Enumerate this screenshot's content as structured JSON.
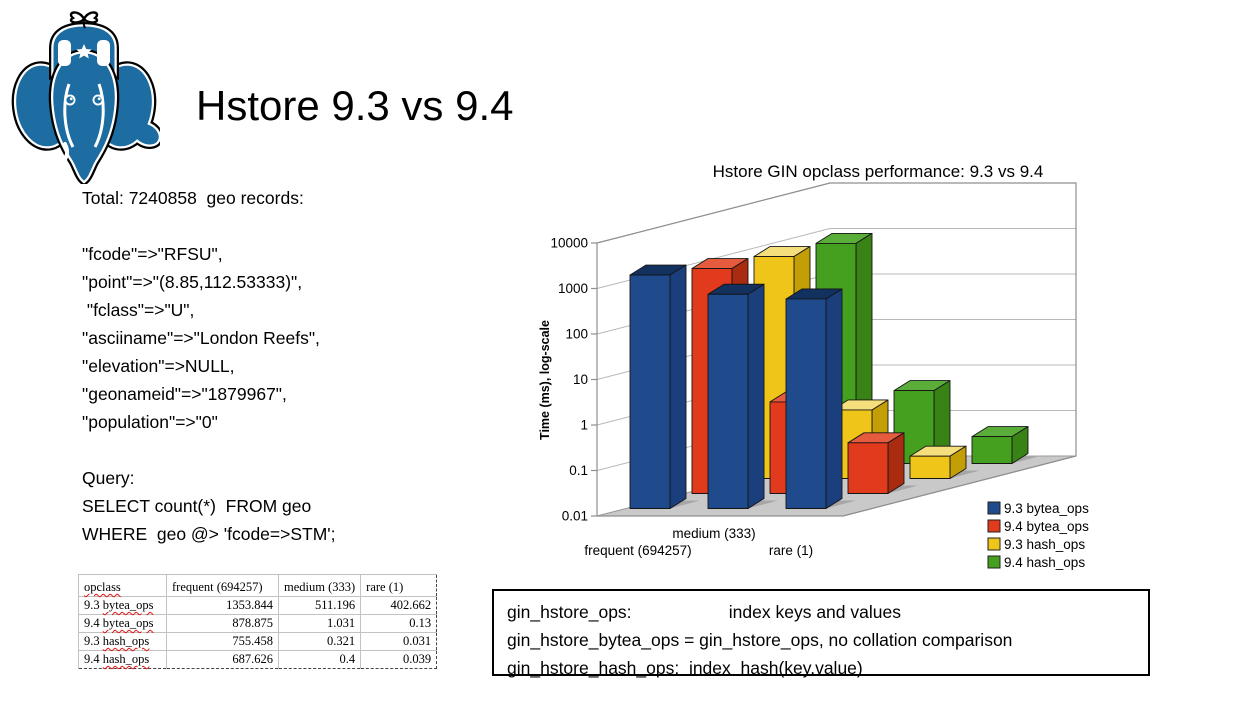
{
  "slide": {
    "title": "Hstore 9.3 vs 9.4"
  },
  "logo": {
    "name": "postgresql-elephant-ushanka-logo",
    "blue": "#1d6ca2"
  },
  "info": {
    "total_line": "Total: 7240858  geo records:",
    "record_lines": [
      "\"fcode\"=>\"RFSU\",",
      "\"point\"=>\"(8.85,112.53333)\",",
      " \"fclass\"=>\"U\",",
      "\"asciiname\"=>\"London Reefs\",",
      "\"elevation\"=>NULL,",
      "\"geonameid\"=>\"1879967\",",
      "\"population\"=>\"0\""
    ],
    "query_label": "Query:",
    "query_lines": [
      "SELECT count(*)  FROM geo",
      "WHERE  geo @> 'fcode=>STM';"
    ]
  },
  "table": {
    "headers": [
      "opclass",
      "frequent (694257)",
      "medium (333)",
      "rare (1)"
    ],
    "rows": [
      {
        "version": "9.3",
        "op": "bytea_ops",
        "values": [
          "1353.844",
          "511.196",
          "402.662"
        ]
      },
      {
        "version": "9.4",
        "op": "bytea_ops",
        "values": [
          "878.875",
          "1.031",
          "0.13"
        ]
      },
      {
        "version": "9.3",
        "op": "hash_ops",
        "values": [
          "755.458",
          "0.321",
          "0.031"
        ]
      },
      {
        "version": "9.4",
        "op": "hash_ops",
        "values": [
          "687.626",
          "0.4",
          "0.039"
        ]
      }
    ]
  },
  "notes_box": {
    "lines": [
      "gin_hstore_ops:                    index keys and values",
      "gin_hstore_bytea_ops = gin_hstore_ops, no collation comparison",
      "gin_hstore_hash_ops:  index  hash(key.value)"
    ]
  },
  "chart_data": {
    "type": "bar",
    "projection": "3d",
    "title": "Hstore GIN opclass performance: 9.3 vs 9.4",
    "ylabel": "Time (ms), log-scale",
    "yscale": "log",
    "ylim": [
      0.01,
      10000
    ],
    "yticks": [
      10000,
      1000,
      100,
      10,
      1,
      0.1,
      0.01
    ],
    "grid": true,
    "legend_position": "bottom-right",
    "categories": [
      "frequent (694257)",
      "medium (333)",
      "rare (1)"
    ],
    "series": [
      {
        "name": "9.3 bytea_ops",
        "color": "#1F4A8C",
        "color_top": "#12315F",
        "color_side": "#1A3F7C",
        "values": [
          1353.844,
          511.196,
          402.662
        ]
      },
      {
        "name": "9.4 bytea_ops",
        "color": "#E23A1C",
        "color_top": "#E65B3E",
        "color_side": "#A92B10",
        "values": [
          878.875,
          1.031,
          0.13
        ]
      },
      {
        "name": "9.3 hash_ops",
        "color": "#EFC51A",
        "color_top": "#F5DF7C",
        "color_side": "#C49E06",
        "values": [
          755.458,
          0.321,
          0.031
        ]
      },
      {
        "name": "9.4 hash_ops",
        "color": "#46A01F",
        "color_top": "#5BAD3A",
        "color_side": "#388216",
        "values": [
          687.626,
          0.4,
          0.039
        ]
      }
    ]
  }
}
